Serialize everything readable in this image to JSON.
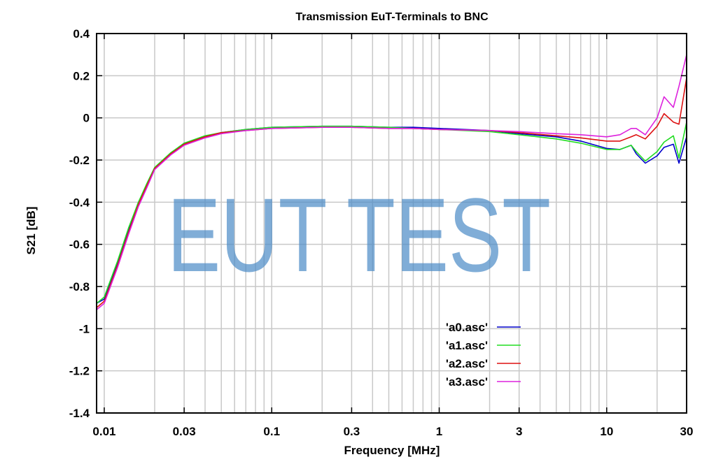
{
  "chart_data": {
    "type": "line",
    "title": "Transmission EuT-Terminals to BNC",
    "xlabel": "Frequency [MHz]",
    "ylabel": "S21 [dB]",
    "xscale": "log",
    "xlim": [
      0.009,
      30
    ],
    "ylim": [
      -1.4,
      0.4
    ],
    "grid": true,
    "legend_position": "lower right (inside)",
    "x_tick_labels": [
      "0.01",
      "0.03",
      "0.1",
      "0.3",
      "1",
      "3",
      "10",
      "30"
    ],
    "x_ticks": [
      0.01,
      0.03,
      0.1,
      0.3,
      1,
      3,
      10,
      30
    ],
    "y_tick_labels": [
      "0.4",
      "0.2",
      "0",
      "-0.2",
      "-0.4",
      "-0.6",
      "-0.8",
      "-1",
      "-1.2",
      "-1.4"
    ],
    "y_ticks": [
      0.4,
      0.2,
      0,
      -0.2,
      -0.4,
      -0.6,
      -0.8,
      -1,
      -1.2,
      -1.4
    ],
    "watermark": "EUT TEST",
    "x": [
      0.009,
      0.01,
      0.012,
      0.014,
      0.016,
      0.018,
      0.02,
      0.025,
      0.03,
      0.04,
      0.05,
      0.07,
      0.1,
      0.2,
      0.3,
      0.5,
      0.7,
      1,
      2,
      3,
      5,
      7,
      10,
      12,
      14,
      15,
      17,
      20,
      22,
      25,
      27,
      30
    ],
    "series": [
      {
        "name": "'a0.asc'",
        "color": "#0000cc",
        "values": [
          -0.88,
          -0.86,
          -0.69,
          -0.53,
          -0.4,
          -0.32,
          -0.24,
          -0.17,
          -0.12,
          -0.09,
          -0.07,
          -0.055,
          -0.045,
          -0.04,
          -0.04,
          -0.045,
          -0.045,
          -0.05,
          -0.06,
          -0.075,
          -0.09,
          -0.11,
          -0.145,
          -0.15,
          -0.13,
          -0.17,
          -0.215,
          -0.18,
          -0.14,
          -0.125,
          -0.215,
          -0.09
        ]
      },
      {
        "name": "'a1.asc'",
        "color": "#22dd22",
        "values": [
          -0.88,
          -0.85,
          -0.68,
          -0.52,
          -0.4,
          -0.31,
          -0.235,
          -0.165,
          -0.12,
          -0.085,
          -0.07,
          -0.055,
          -0.045,
          -0.04,
          -0.04,
          -0.045,
          -0.05,
          -0.055,
          -0.065,
          -0.08,
          -0.1,
          -0.12,
          -0.15,
          -0.15,
          -0.13,
          -0.16,
          -0.205,
          -0.16,
          -0.115,
          -0.085,
          -0.19,
          -0.02
        ]
      },
      {
        "name": "'a2.asc'",
        "color": "#dd1111",
        "values": [
          -0.9,
          -0.87,
          -0.7,
          -0.54,
          -0.41,
          -0.32,
          -0.24,
          -0.17,
          -0.125,
          -0.09,
          -0.07,
          -0.06,
          -0.05,
          -0.045,
          -0.045,
          -0.05,
          -0.05,
          -0.055,
          -0.06,
          -0.07,
          -0.085,
          -0.095,
          -0.11,
          -0.11,
          -0.09,
          -0.08,
          -0.1,
          -0.04,
          0.02,
          -0.02,
          -0.03,
          0.19
        ]
      },
      {
        "name": "'a3.asc'",
        "color": "#dd22dd",
        "values": [
          -0.91,
          -0.88,
          -0.71,
          -0.55,
          -0.42,
          -0.33,
          -0.245,
          -0.175,
          -0.13,
          -0.095,
          -0.075,
          -0.06,
          -0.05,
          -0.045,
          -0.045,
          -0.05,
          -0.05,
          -0.055,
          -0.06,
          -0.065,
          -0.075,
          -0.08,
          -0.09,
          -0.08,
          -0.05,
          -0.05,
          -0.08,
          0.0,
          0.1,
          0.05,
          0.15,
          0.3
        ]
      }
    ]
  },
  "colors": {
    "grid": "#c8c8c8",
    "axes": "#000000",
    "watermark": "#4a8ac6"
  }
}
